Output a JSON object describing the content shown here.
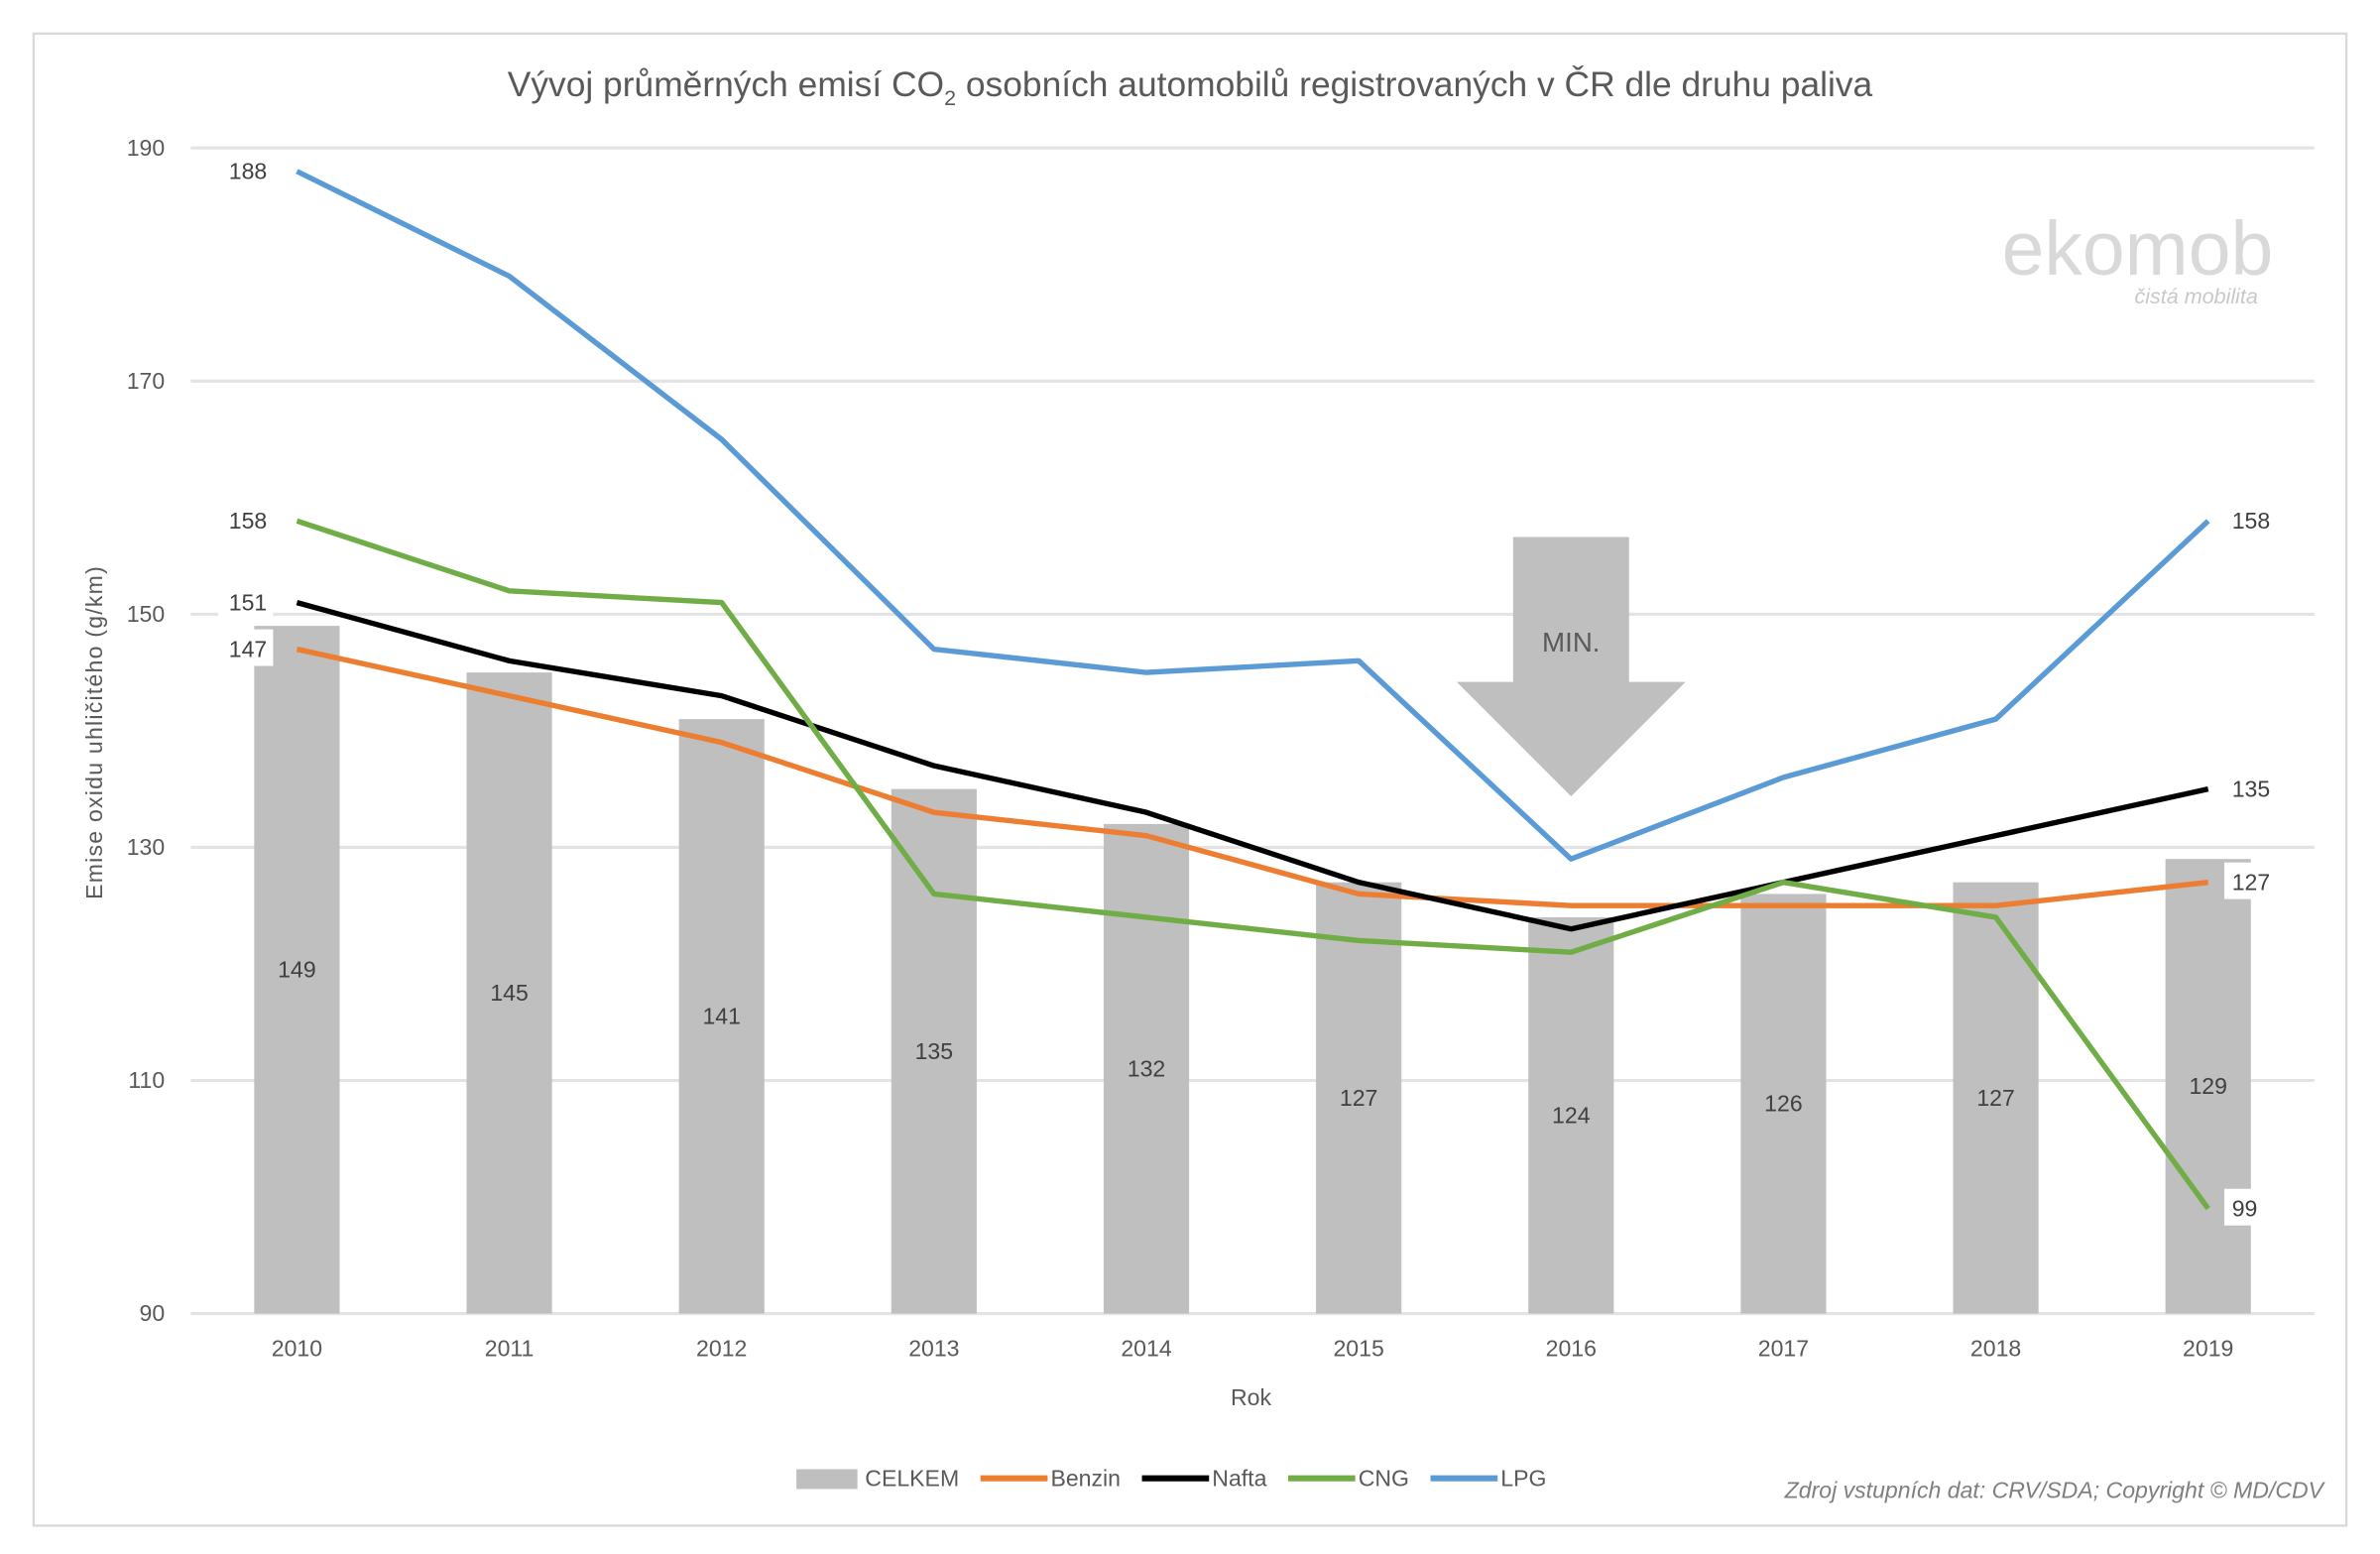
{
  "chart_data": {
    "type": "bar+line",
    "title": "Vývoj průměrných emisí CO2 osobních automobilů registrovaných v ČR dle druhu paliva",
    "title_parts": {
      "pre": "Vývoj průměrných emisí CO",
      "sub": "2",
      "post": " osobních automobilů registrovaných v ČR dle druhu paliva"
    },
    "xlabel": "Rok",
    "ylabel": "Emise oxidu uhličitého (g/km)",
    "ylim": [
      90,
      190
    ],
    "yticks": [
      "90",
      "110",
      "130",
      "150",
      "170",
      "190"
    ],
    "grid": true,
    "legend_position": "bottom",
    "categories": [
      "2010",
      "2011",
      "2012",
      "2013",
      "2014",
      "2015",
      "2016",
      "2017",
      "2018",
      "2019"
    ],
    "series": [
      {
        "name": "CELKEM",
        "kind": "bar",
        "color": "#BFBFBF",
        "values": [
          149,
          145,
          141,
          135,
          132,
          127,
          124,
          126,
          127,
          129
        ],
        "labels": [
          "149",
          "145",
          "141",
          "135",
          "132",
          "127",
          "124",
          "126",
          "127",
          "129"
        ]
      },
      {
        "name": "Benzin",
        "kind": "line",
        "color": "#ED7D31",
        "values": [
          147,
          143,
          139,
          133,
          131,
          126,
          125,
          125,
          125,
          127
        ],
        "end_labels": [
          "147",
          "127"
        ]
      },
      {
        "name": "Nafta",
        "kind": "line",
        "color": "#000000",
        "values": [
          151,
          146,
          143,
          137,
          133,
          127,
          123,
          127,
          131,
          135
        ],
        "end_labels": [
          "151",
          "135"
        ]
      },
      {
        "name": "CNG",
        "kind": "line",
        "color": "#70AD47",
        "values": [
          158,
          152,
          151,
          126,
          124,
          122,
          121,
          127,
          124,
          99
        ],
        "end_labels": [
          "158",
          "99"
        ]
      },
      {
        "name": "LPG",
        "kind": "line",
        "color": "#5B9BD5",
        "values": [
          188,
          179,
          165,
          147,
          145,
          146,
          129,
          136,
          141,
          158
        ],
        "end_labels": [
          "188",
          "158"
        ]
      }
    ],
    "annotation": {
      "text": "MIN.",
      "category": "2016",
      "color": "#BFBFBF"
    }
  },
  "logo": {
    "name": "ekomob",
    "tagline": "čistá mobilita"
  },
  "source": "Zdroj vstupních dat: CRV/SDA; Copyright © MD/CDV"
}
